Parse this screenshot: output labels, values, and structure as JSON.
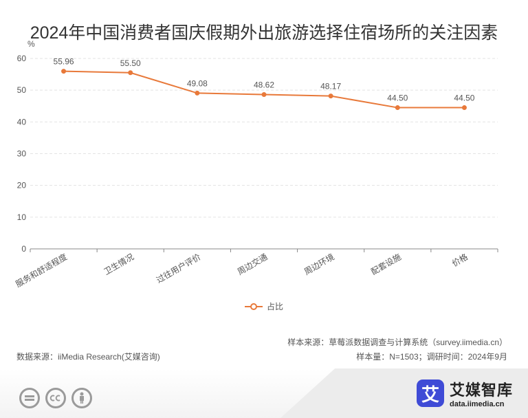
{
  "chart_data": {
    "type": "line",
    "title": "2024年中国消费者国庆假期外出旅游选择住宿场所的关注因素",
    "ylabel": "%",
    "categories": [
      "服务和舒适程度",
      "卫生情况",
      "过往用户评价",
      "周边交通",
      "周边环境",
      "配套设施",
      "价格"
    ],
    "series": [
      {
        "name": "占比",
        "values": [
          55.96,
          55.5,
          49.08,
          48.62,
          48.17,
          44.5,
          44.5
        ],
        "labels": [
          "55.96",
          "55.50",
          "49.08",
          "48.62",
          "48.17",
          "44.50",
          "44.50"
        ]
      }
    ],
    "ylim": [
      0,
      60
    ],
    "yticks": [
      0,
      10,
      20,
      30,
      40,
      50,
      60
    ],
    "grid": true,
    "legend_position": "bottom-center",
    "color": "#e8793a"
  },
  "notes": {
    "sample_source": "样本来源：草莓派数据调查与计算系统（survey.iimedia.cn）",
    "data_source": "数据来源：iiMedia Research(艾媒咨询)",
    "sample_size": "样本量：N=1503；调研时间：2024年9月"
  },
  "brand": {
    "logo_char": "艾",
    "name": "艾媒智库",
    "url": "data.iimedia.cn"
  },
  "license_icons": [
    "equal-icon",
    "cc-icon",
    "person-icon"
  ]
}
